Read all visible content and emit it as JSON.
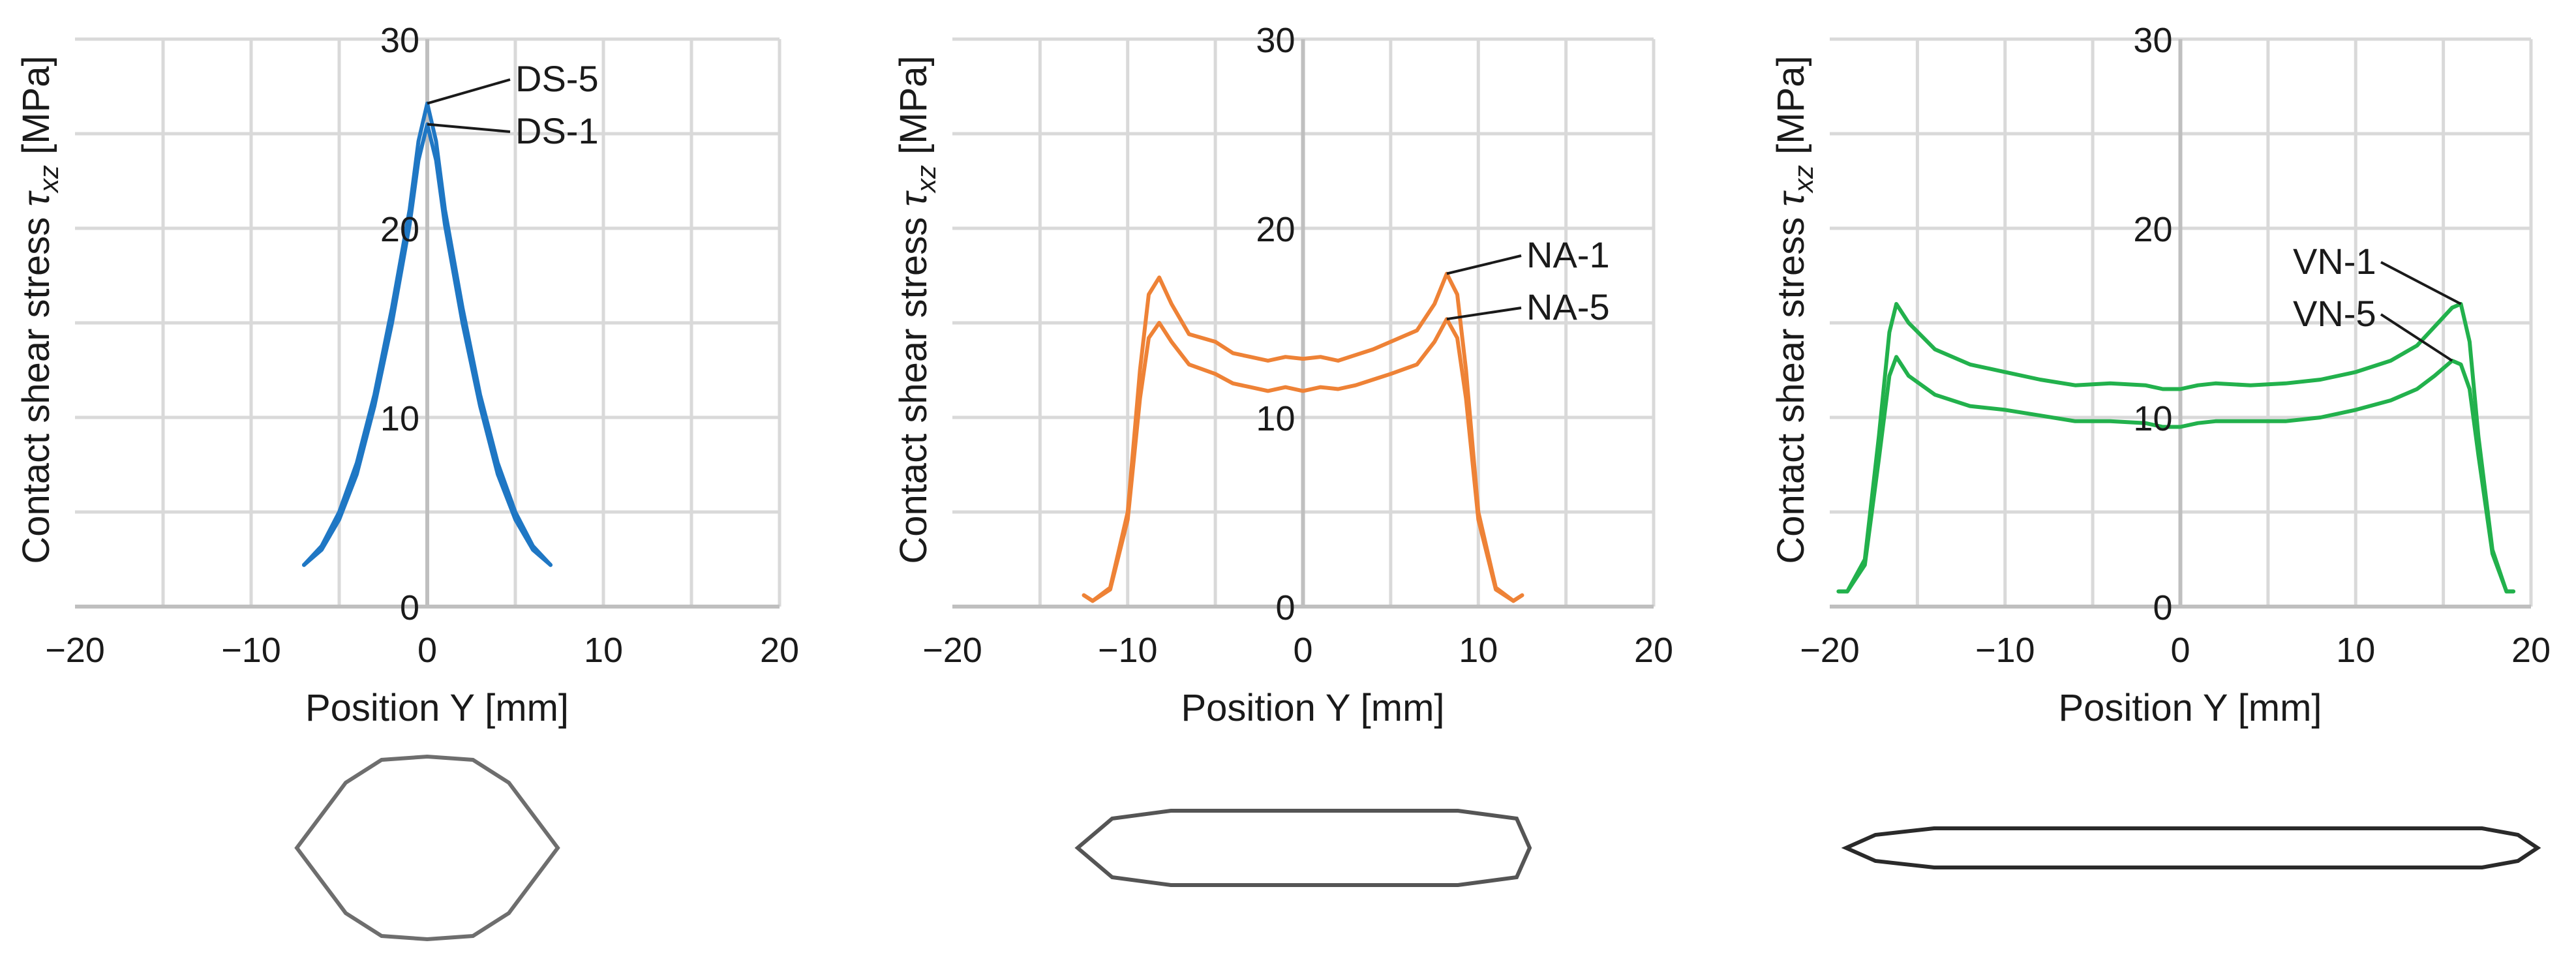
{
  "chart_data": [
    {
      "type": "line",
      "xlabel": "Position Y [mm]",
      "ylabel_main": "Contact shear stress ",
      "ylabel_symbol": "τ",
      "ylabel_sub": "xz",
      "ylabel_unit": " [MPa]",
      "xlim": [
        -20,
        20
      ],
      "ylim": [
        0,
        30
      ],
      "x_ticks": [
        "−20",
        "−10",
        "0",
        "10",
        "20"
      ],
      "y_ticks": [
        "0",
        "10",
        "20",
        "30"
      ],
      "grid": true,
      "color": "#1f77c4",
      "series": [
        {
          "name": "DS-5",
          "points": [
            [
              -7,
              2.2
            ],
            [
              -6,
              3.2
            ],
            [
              -5,
              5.0
            ],
            [
              -4,
              7.6
            ],
            [
              -3,
              11.2
            ],
            [
              -2,
              15.8
            ],
            [
              -1,
              21.0
            ],
            [
              -0.5,
              24.6
            ],
            [
              0,
              26.6
            ],
            [
              0.5,
              24.6
            ],
            [
              1,
              21.0
            ],
            [
              2,
              15.8
            ],
            [
              3,
              11.2
            ],
            [
              4,
              7.6
            ],
            [
              5,
              5.0
            ],
            [
              6,
              3.2
            ],
            [
              7,
              2.2
            ]
          ]
        },
        {
          "name": "DS-1",
          "points": [
            [
              -7,
              2.2
            ],
            [
              -6,
              3.0
            ],
            [
              -5,
              4.6
            ],
            [
              -4,
              7.0
            ],
            [
              -3,
              10.6
            ],
            [
              -2,
              15.0
            ],
            [
              -1,
              20.2
            ],
            [
              -0.5,
              23.6
            ],
            [
              0,
              25.5
            ],
            [
              0.5,
              23.6
            ],
            [
              1,
              20.2
            ],
            [
              2,
              15.0
            ],
            [
              3,
              10.6
            ],
            [
              4,
              7.0
            ],
            [
              5,
              4.6
            ],
            [
              6,
              3.0
            ],
            [
              7,
              2.2
            ]
          ]
        }
      ],
      "annotations": [
        {
          "label": "DS-5",
          "series": "DS-5",
          "x": 0,
          "y": 26.6
        },
        {
          "label": "DS-1",
          "series": "DS-1",
          "x": 0,
          "y": 25.5
        }
      ]
    },
    {
      "type": "line",
      "xlabel": "Position Y [mm]",
      "ylabel_main": "Contact shear stress ",
      "ylabel_symbol": "τ",
      "ylabel_sub": "xz",
      "ylabel_unit": " [MPa]",
      "xlim": [
        -20,
        20
      ],
      "ylim": [
        0,
        30
      ],
      "x_ticks": [
        "−20",
        "−10",
        "0",
        "10",
        "20"
      ],
      "y_ticks": [
        "0",
        "10",
        "20",
        "30"
      ],
      "grid": true,
      "color": "#ee8236",
      "series": [
        {
          "name": "NA-1",
          "points": [
            [
              -12.5,
              0.6
            ],
            [
              -12,
              0.3
            ],
            [
              -11,
              1.0
            ],
            [
              -10,
              5.0
            ],
            [
              -9.3,
              12.5
            ],
            [
              -8.8,
              16.5
            ],
            [
              -8.2,
              17.4
            ],
            [
              -7.5,
              16.0
            ],
            [
              -6.5,
              14.4
            ],
            [
              -5,
              14.0
            ],
            [
              -4,
              13.4
            ],
            [
              -3,
              13.2
            ],
            [
              -2,
              13.0
            ],
            [
              -1,
              13.2
            ],
            [
              0,
              13.1
            ],
            [
              1,
              13.2
            ],
            [
              2,
              13.0
            ],
            [
              3,
              13.3
            ],
            [
              4,
              13.6
            ],
            [
              5,
              14.0
            ],
            [
              6.5,
              14.6
            ],
            [
              7.5,
              16.0
            ],
            [
              8.2,
              17.6
            ],
            [
              8.8,
              16.5
            ],
            [
              9.3,
              12.5
            ],
            [
              10,
              5.0
            ],
            [
              11,
              1.0
            ],
            [
              12,
              0.3
            ],
            [
              12.5,
              0.6
            ]
          ]
        },
        {
          "name": "NA-5",
          "points": [
            [
              -12.5,
              0.6
            ],
            [
              -12,
              0.3
            ],
            [
              -11,
              0.9
            ],
            [
              -10,
              4.6
            ],
            [
              -9.3,
              11.0
            ],
            [
              -8.8,
              14.2
            ],
            [
              -8.2,
              15.0
            ],
            [
              -7.5,
              14.0
            ],
            [
              -6.5,
              12.8
            ],
            [
              -5,
              12.3
            ],
            [
              -4,
              11.8
            ],
            [
              -3,
              11.6
            ],
            [
              -2,
              11.4
            ],
            [
              -1,
              11.6
            ],
            [
              0,
              11.4
            ],
            [
              1,
              11.6
            ],
            [
              2,
              11.5
            ],
            [
              3,
              11.7
            ],
            [
              4,
              12.0
            ],
            [
              5,
              12.3
            ],
            [
              6.5,
              12.8
            ],
            [
              7.5,
              14.0
            ],
            [
              8.2,
              15.2
            ],
            [
              8.8,
              14.2
            ],
            [
              9.3,
              11.0
            ],
            [
              10,
              4.6
            ],
            [
              11,
              0.9
            ],
            [
              12,
              0.3
            ],
            [
              12.5,
              0.6
            ]
          ]
        }
      ],
      "annotations": [
        {
          "label": "NA-1",
          "series": "NA-1",
          "x": 8.2,
          "y": 17.6
        },
        {
          "label": "NA-5",
          "series": "NA-5",
          "x": 8.2,
          "y": 15.2
        }
      ]
    },
    {
      "type": "line",
      "xlabel": "Position Y [mm]",
      "ylabel_main": "Contact shear stress ",
      "ylabel_symbol": "τ",
      "ylabel_sub": "xz",
      "ylabel_unit": " [MPa]",
      "xlim": [
        -20,
        20
      ],
      "ylim": [
        0,
        30
      ],
      "x_ticks": [
        "−20",
        "−10",
        "0",
        "10",
        "20"
      ],
      "y_ticks": [
        "0",
        "10",
        "20",
        "30"
      ],
      "grid": true,
      "color": "#22b14c",
      "series": [
        {
          "name": "VN-1",
          "points": [
            [
              -19.5,
              0.8
            ],
            [
              -19,
              0.8
            ],
            [
              -18,
              2.5
            ],
            [
              -17.2,
              9.0
            ],
            [
              -16.6,
              14.5
            ],
            [
              -16.2,
              16.0
            ],
            [
              -15.5,
              15.0
            ],
            [
              -14,
              13.6
            ],
            [
              -12,
              12.8
            ],
            [
              -10,
              12.4
            ],
            [
              -8,
              12.0
            ],
            [
              -6,
              11.7
            ],
            [
              -4,
              11.8
            ],
            [
              -2,
              11.7
            ],
            [
              -1,
              11.5
            ],
            [
              0,
              11.5
            ],
            [
              1,
              11.7
            ],
            [
              2,
              11.8
            ],
            [
              4,
              11.7
            ],
            [
              6,
              11.8
            ],
            [
              8,
              12.0
            ],
            [
              10,
              12.4
            ],
            [
              12,
              13.0
            ],
            [
              13.5,
              13.8
            ],
            [
              14.5,
              14.8
            ],
            [
              15.5,
              15.8
            ],
            [
              16,
              16.0
            ],
            [
              16.5,
              14.0
            ],
            [
              17,
              9.0
            ],
            [
              17.8,
              3.0
            ],
            [
              18.6,
              0.8
            ],
            [
              19,
              0.8
            ]
          ]
        },
        {
          "name": "VN-5",
          "points": [
            [
              -19.5,
              0.8
            ],
            [
              -19,
              0.8
            ],
            [
              -18,
              2.2
            ],
            [
              -17.2,
              7.8
            ],
            [
              -16.6,
              12.2
            ],
            [
              -16.2,
              13.2
            ],
            [
              -15.5,
              12.2
            ],
            [
              -14,
              11.2
            ],
            [
              -12,
              10.6
            ],
            [
              -10,
              10.4
            ],
            [
              -8,
              10.1
            ],
            [
              -6,
              9.8
            ],
            [
              -4,
              9.8
            ],
            [
              -2,
              9.7
            ],
            [
              -1,
              9.5
            ],
            [
              0,
              9.5
            ],
            [
              1,
              9.7
            ],
            [
              2,
              9.8
            ],
            [
              4,
              9.8
            ],
            [
              6,
              9.8
            ],
            [
              8,
              10.0
            ],
            [
              10,
              10.4
            ],
            [
              12,
              10.9
            ],
            [
              13.5,
              11.5
            ],
            [
              14.5,
              12.2
            ],
            [
              15.5,
              13.0
            ],
            [
              16,
              12.8
            ],
            [
              16.5,
              11.5
            ],
            [
              17,
              8.0
            ],
            [
              17.8,
              2.8
            ],
            [
              18.6,
              0.8
            ],
            [
              19,
              0.8
            ]
          ]
        }
      ],
      "annotations": [
        {
          "label": "VN-1",
          "series": "VN-1",
          "x": 16,
          "y": 16.0
        },
        {
          "label": "VN-5",
          "series": "VN-5",
          "x": 15.5,
          "y": 13.0
        }
      ]
    }
  ]
}
